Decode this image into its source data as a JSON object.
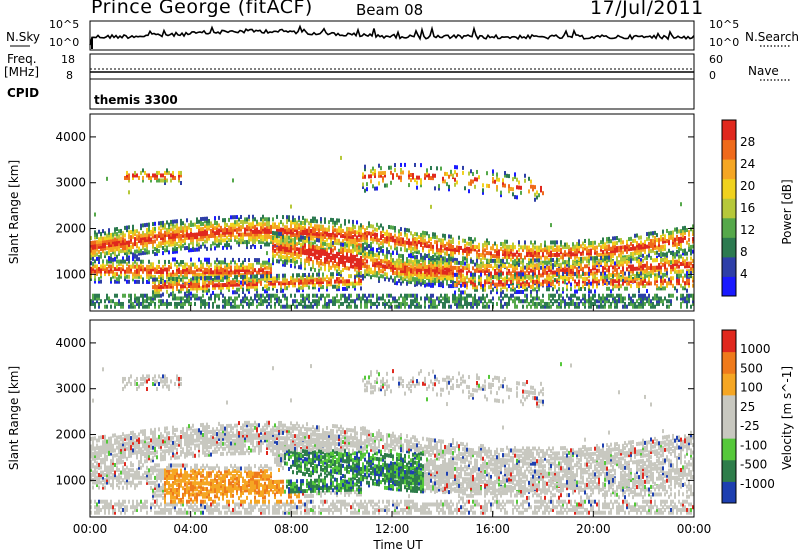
{
  "header": {
    "station": "Prince George (fitACF)",
    "beam": "Beam 08",
    "date": "17/Jul/2011"
  },
  "strip_panels": {
    "nsky": {
      "left_label": "N.Sky",
      "right_label": "N.Search",
      "left_ticks": [
        "10^5",
        "10^0"
      ],
      "right_ticks": [
        "10^5",
        "10^0"
      ]
    },
    "freq": {
      "left_label_1": "Freq.",
      "left_label_2": "[MHz]",
      "right_label": "Nave",
      "left_ticks": [
        "18",
        "8"
      ],
      "right_ticks": [
        "60",
        "0"
      ]
    },
    "cpid": {
      "left_label": "CPID",
      "program": "themis 3300"
    }
  },
  "chart_data": [
    {
      "type": "heatmap",
      "panel": "power",
      "ylabel": "Slant Range [km]",
      "ylim": [
        200,
        4500
      ],
      "yticks": [
        "4000",
        "3000",
        "2000",
        "1000"
      ],
      "colorbar_label": "Power [dB]",
      "colorbar_ticks": [
        "28",
        "24",
        "20",
        "16",
        "12",
        "8",
        "4"
      ],
      "colorbar_range": [
        0,
        30
      ],
      "colors": [
        "#1a1aff",
        "#2e3fa8",
        "#2c7a50",
        "#55a84a",
        "#b6c83a",
        "#f0d21e",
        "#f5a623",
        "#ef6a1b",
        "#e0281e"
      ]
    },
    {
      "type": "heatmap",
      "panel": "velocity",
      "ylabel": "Slant Range [km]",
      "ylim": [
        200,
        4500
      ],
      "yticks": [
        "4000",
        "3000",
        "2000",
        "1000"
      ],
      "colorbar_label": "Velocity [m s^-1]",
      "colorbar_ticks": [
        "1000",
        "500",
        "100",
        "25",
        "-25",
        "-100",
        "-500",
        "-1000"
      ],
      "colors": [
        "#1d3fb0",
        "#2e7d4a",
        "#55c83a",
        "#c8c8c0",
        "#c8c8c0",
        "#f5a623",
        "#ef7a1b",
        "#e0281e"
      ]
    }
  ],
  "xaxis": {
    "ticks": [
      "00:00",
      "04:00",
      "08:00",
      "12:00",
      "16:00",
      "20:00",
      "00:00"
    ],
    "label": "Time UT"
  }
}
